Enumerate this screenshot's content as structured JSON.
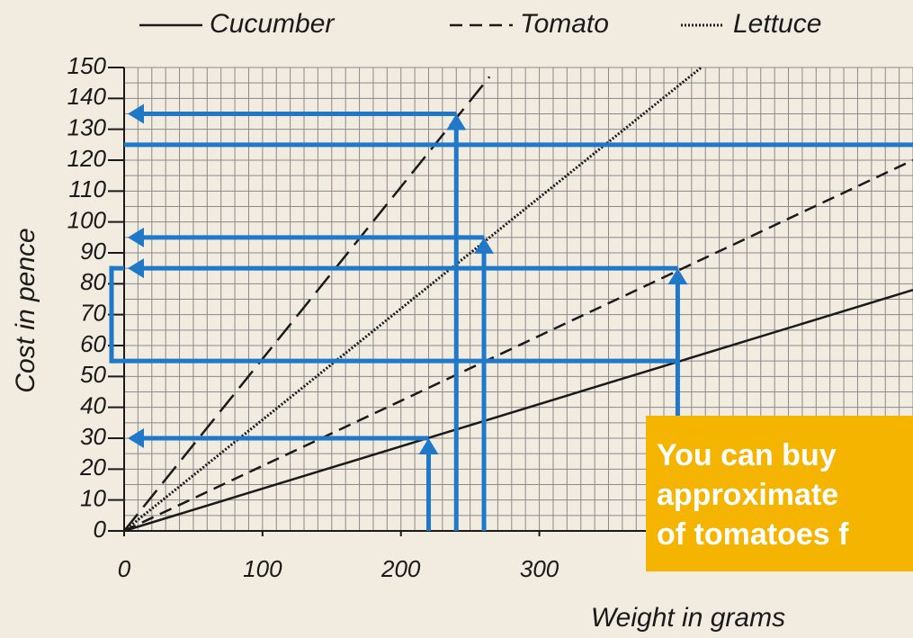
{
  "chart_data": {
    "type": "line",
    "series": [
      {
        "name": "Cucumber",
        "color": "#1a1a1a",
        "dash": "solid",
        "x": [
          0,
          570
        ],
        "values": [
          0,
          78
        ]
      },
      {
        "name": "Tomato",
        "color": "#1a1a1a",
        "dash": "dashed",
        "x": [
          0,
          570
        ],
        "values": [
          0,
          120
        ]
      },
      {
        "name": "Lettuce",
        "color": "#1a1a1a",
        "dash": "dotted",
        "x": [
          0,
          417
        ],
        "values": [
          0,
          150
        ]
      },
      {
        "color": "#1a1a1a",
        "dash": "longdash",
        "x": [
          0,
          264
        ],
        "values": [
          0,
          147
        ]
      }
    ],
    "xlim": [
      0,
      570
    ],
    "ylim": [
      0,
      150
    ],
    "xticks": [
      0,
      100,
      200,
      300
    ],
    "yticks": [
      0,
      10,
      20,
      30,
      40,
      50,
      60,
      70,
      80,
      90,
      100,
      110,
      120,
      130,
      140,
      150
    ],
    "minor_grid": {
      "x": 10,
      "y": 5
    },
    "x_label": "Weight in grams",
    "y_label": "Cost in pence",
    "guides": [
      {
        "x": 220,
        "y": 30
      },
      {
        "x": 240,
        "y": 135
      },
      {
        "x": 260,
        "y": 95
      },
      {
        "x": 400,
        "y": 85
      }
    ],
    "hlines": [
      {
        "y": 125
      },
      {
        "y": 55,
        "x": 400
      }
    ],
    "bracket": [
      55,
      85
    ],
    "guide_color": "#1f78c8",
    "callout": [
      "You can buy",
      "approximate",
      "of tomatoes f"
    ]
  }
}
